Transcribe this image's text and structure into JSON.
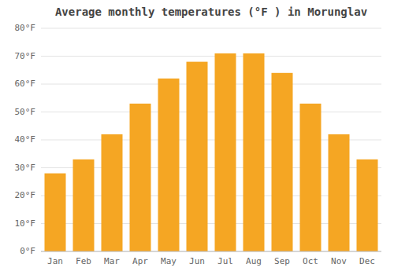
{
  "chart_data": {
    "type": "bar",
    "title": "Average monthly temperatures (°F ) in Morunglav",
    "categories": [
      "Jan",
      "Feb",
      "Mar",
      "Apr",
      "May",
      "Jun",
      "Jul",
      "Aug",
      "Sep",
      "Oct",
      "Nov",
      "Dec"
    ],
    "values": [
      28,
      33,
      42,
      53,
      62,
      68,
      71,
      71,
      64,
      53,
      42,
      33
    ],
    "color": "#F5A623",
    "ylim": [
      0,
      80
    ],
    "yticks": [
      {
        "value": 0,
        "label": "0°F"
      },
      {
        "value": 10,
        "label": "10°F"
      },
      {
        "value": 20,
        "label": "20°F"
      },
      {
        "value": 30,
        "label": "30°F"
      },
      {
        "value": 40,
        "label": "40°F"
      },
      {
        "value": 50,
        "label": "50°F"
      },
      {
        "value": 60,
        "label": "60°F"
      },
      {
        "value": 70,
        "label": "70°F"
      },
      {
        "value": 80,
        "label": "80°F"
      }
    ],
    "grid": true
  }
}
